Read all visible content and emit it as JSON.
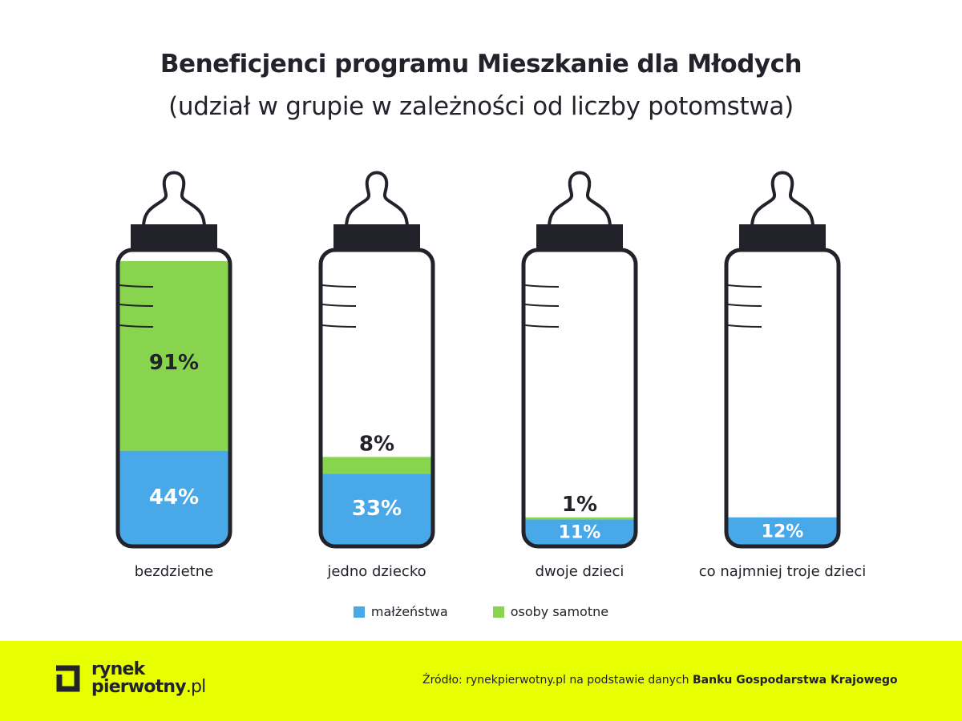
{
  "chart_data": {
    "type": "bar",
    "stacked": true,
    "title": "Beneficjenci programu Mieszkanie dla Młodych",
    "subtitle": "(udział w grupie w zależności od liczby potomstwa)",
    "categories": [
      "bezdzietne",
      "jedno dziecko",
      "dwoje dzieci",
      "co najmniej troje dzieci"
    ],
    "series": [
      {
        "name": "małżeństwa",
        "color": "#48a8e8",
        "values": [
          44,
          33,
          11,
          12
        ],
        "labels": [
          "44%",
          "33%",
          "11%",
          "12%"
        ]
      },
      {
        "name": "osoby samotne",
        "color": "#88d44e",
        "values": [
          91,
          8,
          1,
          null
        ],
        "labels": [
          "91%",
          "8%",
          "1%",
          ""
        ]
      }
    ],
    "legend_position": "bottom",
    "mark_shape": "baby-bottle"
  },
  "footer": {
    "logo_line1": "rynek",
    "logo_line2": "pierwotny",
    "logo_suffix": ".pl",
    "source_prefix": "Źródło: rynekpierwotny.pl na podstawie danych ",
    "source_bold": "Banku Gospodarstwa Krajowego",
    "background": "#e8ff00"
  }
}
